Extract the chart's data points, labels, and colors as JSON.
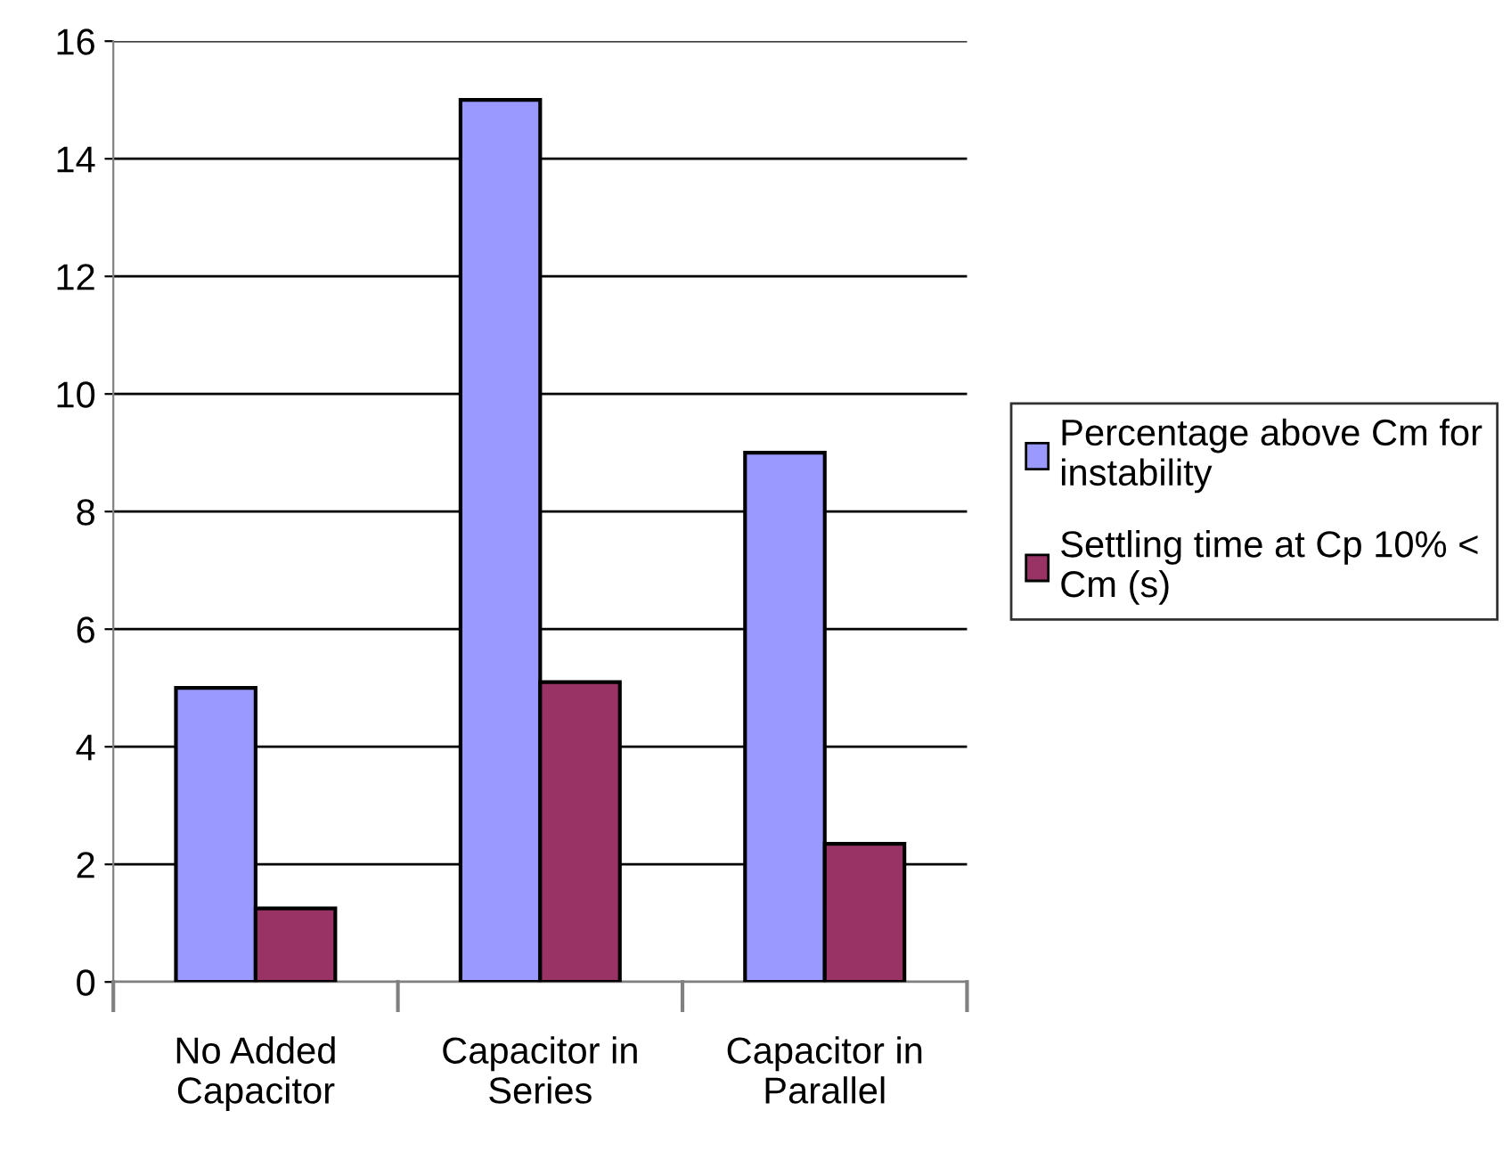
{
  "chart_data": {
    "type": "bar",
    "categories": [
      "No Added\nCapacitor",
      "Capacitor in\nSeries",
      "Capacitor in\nParallel"
    ],
    "series": [
      {
        "name": "Percentage above Cm for\ninstability",
        "color": "#9999ff",
        "values": [
          5,
          15,
          9
        ]
      },
      {
        "name": "Settling time at Cp 10% <\nCm (s)",
        "color": "#993366",
        "values": [
          1.25,
          5.1,
          2.35
        ]
      }
    ],
    "ylim": [
      0,
      16
    ],
    "yticks": [
      0,
      2,
      4,
      6,
      8,
      10,
      12,
      14,
      16
    ],
    "grid": "y",
    "legend": "right"
  }
}
